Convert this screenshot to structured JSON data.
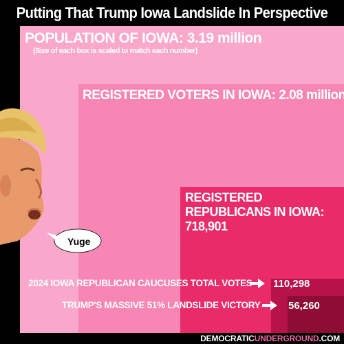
{
  "title": "Putting That Trump Iowa Landslide In Perspective",
  "boxes": {
    "population": {
      "label": "POPULATION OF IOWA: 3.19 million",
      "note": "(Size of each box is scaled to match each number)"
    },
    "registered_voters": {
      "label": "REGISTERED VOTERS IN IOWA: 2.08 million"
    },
    "registered_republicans": {
      "label": "REGISTERED REPUBLICANS IN IOWA: 718,901"
    },
    "caucus_votes": {
      "label": "2024 IOWA REPUBLICAN CAUCUSES TOTAL VOTES",
      "value": "110,298"
    },
    "trump_victory": {
      "label": "TRUMP'S MASSIVE 51% LANDSLIDE VICTORY",
      "value": "56,260"
    }
  },
  "speech_bubble": "Yuge",
  "footer": {
    "prefix": "DEMOCRATIC",
    "accent": "UNDERGROUND",
    "suffix": ".COM"
  },
  "colors": {
    "population": "#f9a8cb",
    "registered_voters": "#f786b5",
    "registered_republicans": "#ea2b6a",
    "caucus_votes": "#b8124a",
    "trump_victory": "#8d0d35"
  }
}
